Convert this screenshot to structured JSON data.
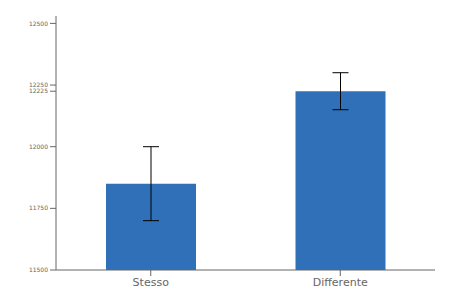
{
  "chart_data": {
    "type": "bar",
    "categories": [
      "Stesso",
      "Differente"
    ],
    "values": [
      11850,
      12225
    ],
    "errors": [
      150,
      75
    ],
    "color": "#3070b8",
    "ylim": [
      11500,
      12530
    ],
    "yticks": [
      11500,
      11750,
      12000,
      12225,
      12250,
      12500
    ]
  }
}
